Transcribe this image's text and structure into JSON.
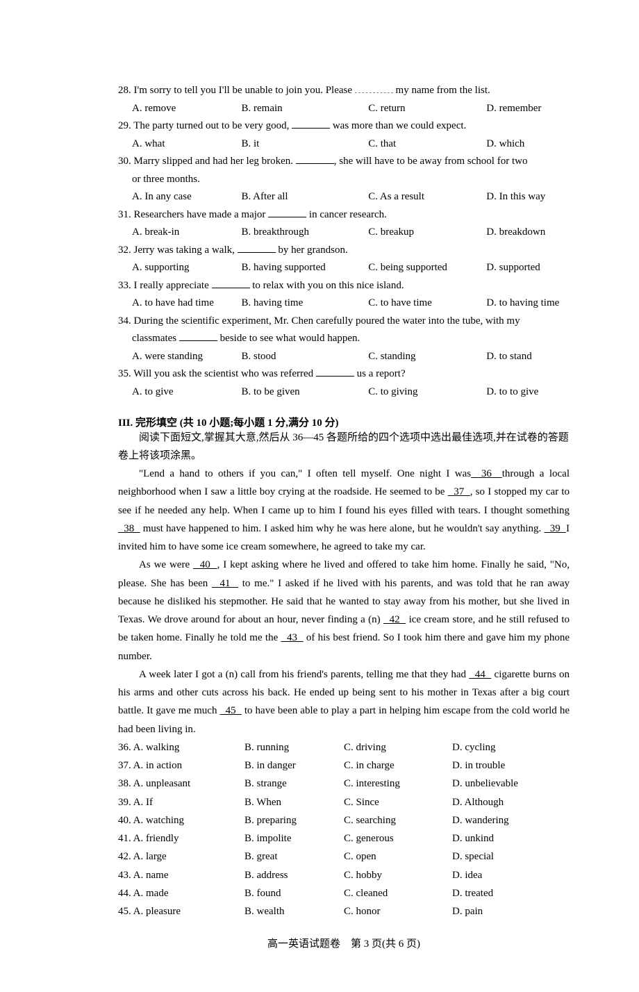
{
  "questions": [
    {
      "n": "28",
      "stem_before": "28. I'm sorry to tell you I'll be unable to join you. Please ",
      "stem_after": " my name from the list.",
      "blank_style": "dashed",
      "opts": [
        "A. remove",
        "B. remain",
        "C. return",
        "D. remember"
      ]
    },
    {
      "n": "29",
      "stem_before": "29. The party turned out to be very good, ",
      "stem_after": " was more than we could expect.",
      "blank_style": "solid",
      "opts": [
        "A. what",
        "B. it",
        "C. that",
        "D. which"
      ]
    },
    {
      "n": "30",
      "stem_before": "30. Marry slipped and had her leg broken. ",
      "stem_after": ", she will have to be away from school for two",
      "stem_cont": "or three months.",
      "blank_style": "solid",
      "opts": [
        "A. In any case",
        "B. After all",
        "C. As a result",
        "D. In this way"
      ]
    },
    {
      "n": "31",
      "stem_before": "31. Researchers have made a major ",
      "stem_after": " in cancer research.",
      "blank_style": "solid",
      "opts": [
        "A. break-in",
        "B. breakthrough",
        "C. breakup",
        "D. breakdown"
      ]
    },
    {
      "n": "32",
      "stem_before": "32. Jerry was taking a walk, ",
      "stem_after": " by her grandson.",
      "blank_style": "solid",
      "opts": [
        "A. supporting",
        "B. having supported",
        "C. being supported",
        "D. supported"
      ]
    },
    {
      "n": "33",
      "stem_before": "33. I really appreciate ",
      "stem_after": " to relax with you on this nice island.",
      "blank_style": "solid",
      "opts": [
        "A. to have had time",
        "B. having time",
        "C. to have time",
        "D. to having time"
      ]
    },
    {
      "n": "34",
      "stem_before": "34. During the scientific experiment, Mr. Chen carefully poured the water into the tube, with my",
      "stem_cont_before": "classmates ",
      "stem_cont_after": " beside to see what would happen.",
      "blank_style": "solid",
      "opts": [
        "A. were standing",
        "B. stood",
        "C. standing",
        "D. to stand"
      ]
    },
    {
      "n": "35",
      "stem_before": "35. Will you ask the scientist who was referred ",
      "stem_after": " us a report?",
      "blank_style": "solid",
      "opts": [
        "A. to give",
        "B. to be given",
        "C. to giving",
        "D. to to give"
      ]
    }
  ],
  "section3": {
    "title": "III. 完形填空 (共 10 小题;每小题 1 分,满分 10 分)",
    "note": "阅读下面短文,掌握其大意,然后从 36—45 各题所给的四个选项中选出最佳选项,并在试卷的答题卷上将该项涂黑。",
    "p1a": "\"Lend a hand to others if you can,\" I often tell myself. One night I was",
    "b36": "  36  ",
    "p1b": "through a local neighborhood when I saw a little boy crying at the roadside. He seemed to be ",
    "b37": "  37  ",
    "p1c": ", so I stopped my car to see if he needed any help. When I came up to him I found his eyes filled  with tears. I thought something ",
    "b38": "  38  ",
    "p1d": " must have happened to him. I asked him why he was here alone, but he wouldn't say anything. ",
    "b39": "  39  ",
    "p1e": "I invited him to have some ice cream somewhere, he agreed to take my car.",
    "p2a": "As we were ",
    "b40": "  40  ",
    "p2b": ", I kept asking where he lived and offered to take him home. Finally he said,  \"No, please. She has been ",
    "b41": "  41  ",
    "p2c": " to me.\" I asked if he lived with his parents, and was told that he ran away because he disliked his stepmother. He said that he wanted to stay away from his mother, but she lived in Texas. We drove around for about an hour, never finding a (n) ",
    "b42": "  42  ",
    "p2d": " ice cream store, and he still refused to be taken home. Finally he told me the ",
    "b43": "  43  ",
    "p2e": " of his best friend. So I took him there and gave him my phone number.",
    "p3a": "A week later I got a (n) call from his friend's parents, telling me that they had ",
    "b44": "  44  ",
    "p3b": " cigarette burns on his arms and other cuts across his back. He ended up being sent to his mother in Texas after a big court battle. It gave me much ",
    "b45": "  45  ",
    "p3c": " to have been able to play a part in helping him escape from the cold world he had been living in."
  },
  "cloze": [
    {
      "n": "36. A. walking",
      "b": "B. running",
      "c": "C. driving",
      "d": "D. cycling"
    },
    {
      "n": "37. A. in action",
      "b": "B. in danger",
      "c": "C. in charge",
      "d": "D. in trouble"
    },
    {
      "n": "38. A. unpleasant",
      "b": "B. strange",
      "c": "C. interesting",
      "d": "D. unbelievable"
    },
    {
      "n": "39. A. If",
      "b": "B. When",
      "c": "C. Since",
      "d": "D. Although"
    },
    {
      "n": "40. A. watching",
      "b": "B. preparing",
      "c": "C. searching",
      "d": "D. wandering"
    },
    {
      "n": "41. A. friendly",
      "b": "B. impolite",
      "c": "C. generous",
      "d": "D. unkind"
    },
    {
      "n": "42. A. large",
      "b": "B. great",
      "c": "C. open",
      "d": "D. special"
    },
    {
      "n": "43. A. name",
      "b": "B. address",
      "c": "C. hobby",
      "d": "D. idea"
    },
    {
      "n": "44. A. made",
      "b": "B. found",
      "c": "C. cleaned",
      "d": "D. treated"
    },
    {
      "n": "45. A. pleasure",
      "b": "B. wealth",
      "c": "C. honor",
      "d": "D. pain"
    }
  ],
  "footer": "高一英语试题卷　第 3 页(共 6 页)"
}
